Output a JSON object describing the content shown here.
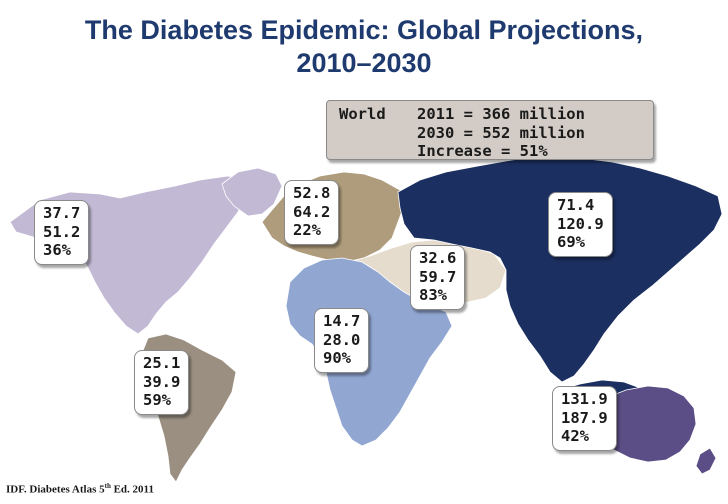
{
  "title": {
    "line1": "The Diabetes Epidemic: Global Projections,",
    "line2": "2010–2030"
  },
  "world": {
    "label": "World",
    "line1": "2011 = 366 million",
    "line2": "2030 = 552 million",
    "line3": "Increase = 51%"
  },
  "regions": {
    "north_america": {
      "v2011": "37.7",
      "v2030": "51.2",
      "increase": "36%",
      "color": "#c2b9d4"
    },
    "south_america": {
      "v2011": "25.1",
      "v2030": "39.9",
      "increase": "59%",
      "color": "#9a8f80"
    },
    "europe": {
      "v2011": "52.8",
      "v2030": "64.2",
      "increase": "22%",
      "color": "#ae9c7c"
    },
    "africa": {
      "v2011": "14.7",
      "v2030": "28.0",
      "increase": "90%",
      "color": "#91a7d2"
    },
    "middle_east": {
      "v2011": "32.6",
      "v2030": "59.7",
      "increase": "83%",
      "color": "#e5dccd"
    },
    "asia": {
      "v2011": "71.4",
      "v2030": "120.9",
      "increase": "69%",
      "color": "#1c2f61"
    },
    "western_pacific": {
      "v2011": "131.9",
      "v2030": "187.9",
      "increase": "42%",
      "color": "#5b4e86"
    }
  },
  "source": {
    "prefix": "IDF. Diabetes Atlas 5",
    "ordinal": "th",
    "suffix": " Ed. 2011"
  }
}
